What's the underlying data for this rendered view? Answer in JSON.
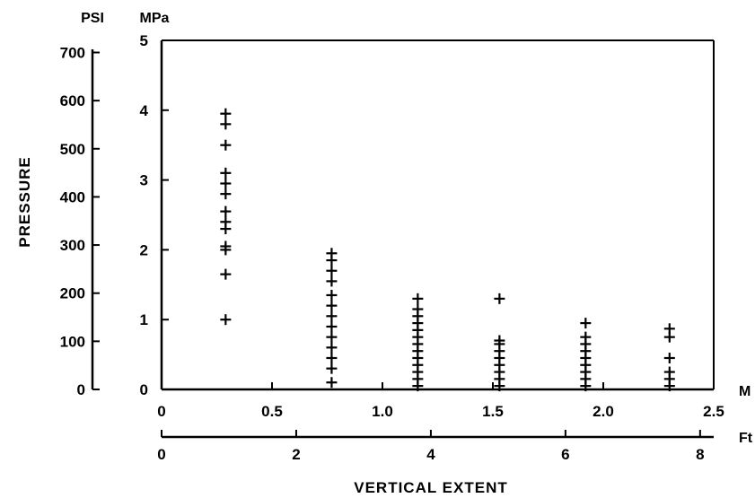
{
  "chart_data": {
    "type": "scatter",
    "marker": "plus",
    "xlabel": "VERTICAL EXTENT",
    "ylabel": "PRESSURE",
    "x_unit_primary": "M",
    "x_unit_secondary": "Ft",
    "y_unit_left": "PSI",
    "y_unit_right": "MPa",
    "xlim": [
      0,
      2.5
    ],
    "ylim": [
      0,
      5
    ],
    "x_ticks": [
      "0",
      "0.5",
      "1.0",
      "1.5",
      "2.0",
      "2.5"
    ],
    "x_ticks_secondary": [
      "0",
      "2",
      "4",
      "6",
      "8"
    ],
    "y_ticks_mpa": [
      "0",
      "1",
      "2",
      "3",
      "4",
      "5"
    ],
    "y_ticks_psi": [
      "0",
      "100",
      "200",
      "300",
      "400",
      "500",
      "600",
      "700"
    ],
    "grid": false,
    "series": [
      {
        "points": [
          [
            0.29,
            1.0
          ],
          [
            0.29,
            1.65
          ],
          [
            0.29,
            2.0
          ],
          [
            0.29,
            2.05
          ],
          [
            0.29,
            2.3
          ],
          [
            0.29,
            2.4
          ],
          [
            0.29,
            2.55
          ],
          [
            0.29,
            2.8
          ],
          [
            0.29,
            2.95
          ],
          [
            0.29,
            3.1
          ],
          [
            0.29,
            3.5
          ],
          [
            0.29,
            3.8
          ],
          [
            0.29,
            3.95
          ],
          [
            0.77,
            0.1
          ],
          [
            0.77,
            0.3
          ],
          [
            0.77,
            0.45
          ],
          [
            0.77,
            0.6
          ],
          [
            0.77,
            0.75
          ],
          [
            0.77,
            0.9
          ],
          [
            0.77,
            1.05
          ],
          [
            0.77,
            1.2
          ],
          [
            0.77,
            1.35
          ],
          [
            0.77,
            1.55
          ],
          [
            0.77,
            1.7
          ],
          [
            0.77,
            1.85
          ],
          [
            0.77,
            1.95
          ],
          [
            1.16,
            0.05
          ],
          [
            1.16,
            0.15
          ],
          [
            1.16,
            0.25
          ],
          [
            1.16,
            0.35
          ],
          [
            1.16,
            0.45
          ],
          [
            1.16,
            0.55
          ],
          [
            1.16,
            0.65
          ],
          [
            1.16,
            0.75
          ],
          [
            1.16,
            0.85
          ],
          [
            1.16,
            0.95
          ],
          [
            1.16,
            1.05
          ],
          [
            1.16,
            1.15
          ],
          [
            1.16,
            1.3
          ],
          [
            1.53,
            0.05
          ],
          [
            1.53,
            0.15
          ],
          [
            1.53,
            0.25
          ],
          [
            1.53,
            0.35
          ],
          [
            1.53,
            0.45
          ],
          [
            1.53,
            0.55
          ],
          [
            1.53,
            0.65
          ],
          [
            1.53,
            0.7
          ],
          [
            1.53,
            1.3
          ],
          [
            1.92,
            0.05
          ],
          [
            1.92,
            0.15
          ],
          [
            1.92,
            0.25
          ],
          [
            1.92,
            0.35
          ],
          [
            1.92,
            0.45
          ],
          [
            1.92,
            0.55
          ],
          [
            1.92,
            0.65
          ],
          [
            1.92,
            0.75
          ],
          [
            1.92,
            0.95
          ],
          [
            2.3,
            0.05
          ],
          [
            2.3,
            0.15
          ],
          [
            2.3,
            0.25
          ],
          [
            2.3,
            0.45
          ],
          [
            2.3,
            0.75
          ],
          [
            2.3,
            0.87
          ]
        ]
      }
    ]
  }
}
